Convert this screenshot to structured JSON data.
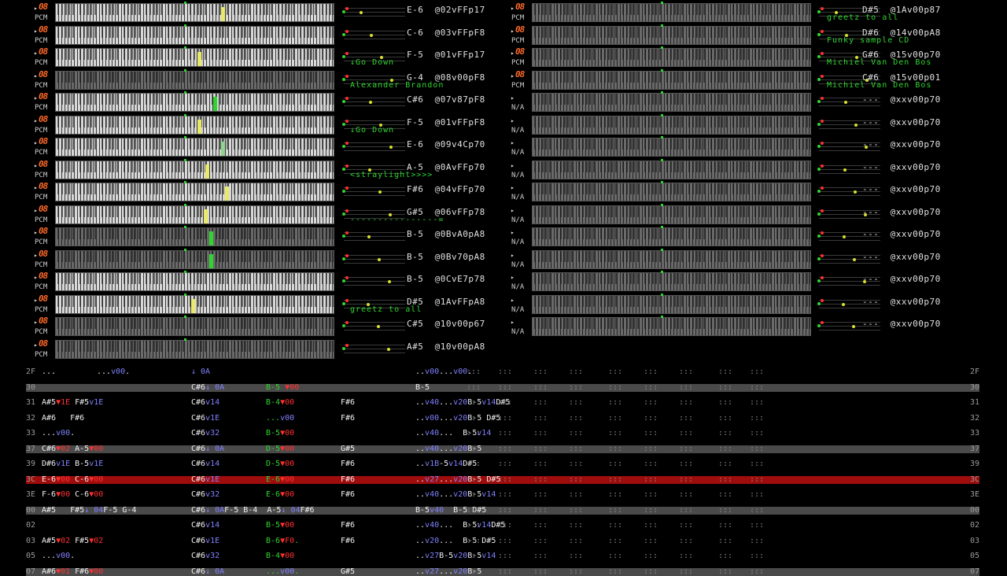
{
  "left_channels": [
    {
      "num": "08",
      "type": "PCM",
      "info": "E-6  @02vFFp17",
      "name": "",
      "bright": true
    },
    {
      "num": "08",
      "type": "PCM",
      "info": "C-6  @03vFFpF8",
      "name": "",
      "bright": true
    },
    {
      "num": "08",
      "type": "PCM",
      "info": "F-5  @01vFFp17",
      "name": "↓Go Down",
      "bright": true
    },
    {
      "num": "08",
      "type": "PCM",
      "info": "G-4  @08v00pF8",
      "name": "Alexander Brandon",
      "bright": false
    },
    {
      "num": "08",
      "type": "PCM",
      "info": "C#6  @07v87pF8",
      "name": "",
      "bright": true
    },
    {
      "num": "08",
      "type": "PCM",
      "info": "F-5  @01vFFpF8",
      "name": "↓Go Down",
      "bright": true
    },
    {
      "num": "08",
      "type": "PCM",
      "info": "E-6  @09v4Cp70",
      "name": "",
      "bright": true
    },
    {
      "num": "08",
      "type": "PCM",
      "info": "A-5  @0AvFFp70",
      "name": "<straylight>>>>",
      "bright": true
    },
    {
      "num": "08",
      "type": "PCM",
      "info": "F#6  @04vFFp70",
      "name": "",
      "bright": true
    },
    {
      "num": "08",
      "type": "PCM",
      "info": "G#5  @06vFFp78",
      "name": "----------------=",
      "bright": true
    },
    {
      "num": "08",
      "type": "PCM",
      "info": "B-5  @0BvA0pA8",
      "name": "",
      "bright": false
    },
    {
      "num": "08",
      "type": "PCM",
      "info": "B-5  @0Bv70pA8",
      "name": "",
      "bright": false
    },
    {
      "num": "08",
      "type": "PCM",
      "info": "B-5  @0CvE7p78",
      "name": "",
      "bright": true
    },
    {
      "num": "08",
      "type": "PCM",
      "info": "D#5  @1AvFFpA8",
      "name": "greetz to all",
      "bright": true
    },
    {
      "num": "08",
      "type": "PCM",
      "info": "C#5  @10v00p67",
      "name": "",
      "bright": false
    },
    {
      "num": "08",
      "type": "PCM",
      "info": "A#5  @10v00pA8",
      "name": "",
      "bright": false
    }
  ],
  "right_channels": [
    {
      "num": "08",
      "type": "PCM",
      "info": "D#5  @1Av00p87",
      "name": "greetz to all"
    },
    {
      "num": "08",
      "type": "PCM",
      "info": "D#6  @14v00pA8",
      "name": "Funky sample CD"
    },
    {
      "num": "08",
      "type": "PCM",
      "info": "G#6  @15v00p70",
      "name": "Michiel Van Den Bos"
    },
    {
      "num": "08",
      "type": "PCM",
      "info": "C#6  @15v00p01",
      "name": "Michiel Van Den Bos"
    },
    {
      "num": "",
      "type": "N/A",
      "info": "---  @xxv00p70",
      "name": ""
    },
    {
      "num": "",
      "type": "N/A",
      "info": "---  @xxv00p70",
      "name": ""
    },
    {
      "num": "",
      "type": "N/A",
      "info": "---  @xxv00p70",
      "name": ""
    },
    {
      "num": "",
      "type": "N/A",
      "info": "---  @xxv00p70",
      "name": ""
    },
    {
      "num": "",
      "type": "N/A",
      "info": "---  @xxv00p70",
      "name": ""
    },
    {
      "num": "",
      "type": "N/A",
      "info": "---  @xxv00p70",
      "name": ""
    },
    {
      "num": "",
      "type": "N/A",
      "info": "---  @xxv00p70",
      "name": ""
    },
    {
      "num": "",
      "type": "N/A",
      "info": "---  @xxv00p70",
      "name": ""
    },
    {
      "num": "",
      "type": "N/A",
      "info": "---  @xxv00p70",
      "name": ""
    },
    {
      "num": "",
      "type": "N/A",
      "info": "---  @xxv00p70",
      "name": ""
    },
    {
      "num": "",
      "type": "N/A",
      "info": "---  @xxv00p70",
      "name": ""
    }
  ],
  "pattern_rows": [
    {
      "row": "2F",
      "kind": "",
      "cells": [
        [
          "...",
          ""
        ],
        [
          "...v00.",
          ""
        ],
        [
          "",
          ""
        ],
        [
          "↓ 0A",
          ""
        ],
        [
          "",
          ""
        ],
        [
          "",
          ""
        ],
        [
          "..v00...v00.",
          ""
        ]
      ]
    },
    {
      "row": "30",
      "kind": "beat",
      "cells": [
        [
          "",
          ""
        ],
        [
          "",
          ""
        ],
        [
          "",
          ""
        ],
        [
          "C#6↓ 0A",
          ""
        ],
        [
          "B-5 ▼00",
          ""
        ],
        [
          "",
          ""
        ],
        [
          "B-5",
          ""
        ]
      ]
    },
    {
      "row": "31",
      "kind": "",
      "cells": [
        [
          "A#5▼1E F#5v1E",
          ""
        ],
        [
          "",
          ""
        ],
        [
          "",
          ""
        ],
        [
          "C#6v14",
          ""
        ],
        [
          "B-4▼00",
          ""
        ],
        [
          "F#6",
          ""
        ],
        [
          "..v40...v20B-5v14D#5",
          ""
        ]
      ]
    },
    {
      "row": "32",
      "kind": "",
      "cells": [
        [
          "A#6   F#6",
          ""
        ],
        [
          "",
          ""
        ],
        [
          "",
          ""
        ],
        [
          "C#6v1E",
          ""
        ],
        [
          "...v00",
          ""
        ],
        [
          "F#6",
          ""
        ],
        [
          "..v00...v20B-5 D#5",
          ""
        ]
      ]
    },
    {
      "row": "33",
      "kind": "",
      "cells": [
        [
          "...v00.",
          ""
        ],
        [
          "",
          ""
        ],
        [
          "",
          ""
        ],
        [
          "C#6v32",
          ""
        ],
        [
          "B-5▼00",
          ""
        ],
        [
          "",
          ""
        ],
        [
          "..v40...  B-5v14",
          ""
        ]
      ]
    },
    {
      "row": "37",
      "kind": "beat",
      "cells": [
        [
          "C#6▼02 A-5▼00",
          ""
        ],
        [
          "",
          ""
        ],
        [
          "",
          ""
        ],
        [
          "C#6↓ 0A",
          ""
        ],
        [
          "D-5▼00",
          ""
        ],
        [
          "G#5",
          ""
        ],
        [
          "..v40...v20B-5",
          ""
        ]
      ]
    },
    {
      "row": "39",
      "kind": "",
      "cells": [
        [
          "D#6v1E B-5v1E",
          ""
        ],
        [
          "",
          ""
        ],
        [
          "",
          ""
        ],
        [
          "C#6v14",
          ""
        ],
        [
          "D-5▼00",
          ""
        ],
        [
          "F#6",
          ""
        ],
        [
          "..v1B-5v14D#5",
          ""
        ]
      ]
    },
    {
      "row": "3C",
      "kind": "cur",
      "cells": [
        [
          "E-6▼00 C-6▼00",
          ""
        ],
        [
          "",
          ""
        ],
        [
          "",
          ""
        ],
        [
          "C#6v1E",
          ""
        ],
        [
          "E-6▼00",
          ""
        ],
        [
          "F#6",
          ""
        ],
        [
          "..v27...v20B-5 D#5",
          ""
        ]
      ]
    },
    {
      "row": "3E",
      "kind": "",
      "cells": [
        [
          "F-6▼00 C-6▼00",
          ""
        ],
        [
          "",
          ""
        ],
        [
          "",
          ""
        ],
        [
          "C#6v32",
          ""
        ],
        [
          "E-6▼00",
          ""
        ],
        [
          "F#6",
          ""
        ],
        [
          "..v40...v20B-5v14",
          ""
        ]
      ]
    },
    {
      "row": "00",
      "kind": "beat",
      "cells": [
        [
          "A#5   F#5↓ 04F-5 G-4",
          ""
        ],
        [
          "",
          ""
        ],
        [
          "",
          ""
        ],
        [
          "C#6↓ 0AF-5 B-4  A-5↓ 04F#6",
          ""
        ],
        [
          "",
          ""
        ],
        [
          "",
          ""
        ],
        [
          "B-5v40  B-5 D#5",
          ""
        ]
      ]
    },
    {
      "row": "02",
      "kind": "",
      "cells": [
        [
          "",
          ""
        ],
        [
          "",
          ""
        ],
        [
          "",
          ""
        ],
        [
          "C#6v14",
          ""
        ],
        [
          "B-5▼00",
          ""
        ],
        [
          "F#6",
          ""
        ],
        [
          "..v40...  B-5v14D#5",
          ""
        ]
      ]
    },
    {
      "row": "03",
      "kind": "",
      "cells": [
        [
          "A#5▼02 F#5▼02",
          ""
        ],
        [
          "",
          ""
        ],
        [
          "",
          ""
        ],
        [
          "C#6v1E",
          ""
        ],
        [
          "B-6▼F0.",
          ""
        ],
        [
          "F#6",
          ""
        ],
        [
          "..v20...  B-5 D#5",
          ""
        ]
      ]
    },
    {
      "row": "05",
      "kind": "",
      "cells": [
        [
          "...v00.",
          ""
        ],
        [
          "",
          ""
        ],
        [
          "",
          ""
        ],
        [
          "C#6v32",
          ""
        ],
        [
          "B-4▼00",
          ""
        ],
        [
          "",
          ""
        ],
        [
          "..v27B-5v20B-5v14",
          ""
        ]
      ]
    },
    {
      "row": "07",
      "kind": "beat",
      "cells": [
        [
          "A#6▼01 F#6▼00",
          ""
        ],
        [
          "",
          ""
        ],
        [
          "",
          ""
        ],
        [
          "C#6↓ 0A",
          ""
        ],
        [
          "...v00.",
          ""
        ],
        [
          "G#5",
          ""
        ],
        [
          "..v27...v20B-5",
          ""
        ]
      ]
    }
  ]
}
